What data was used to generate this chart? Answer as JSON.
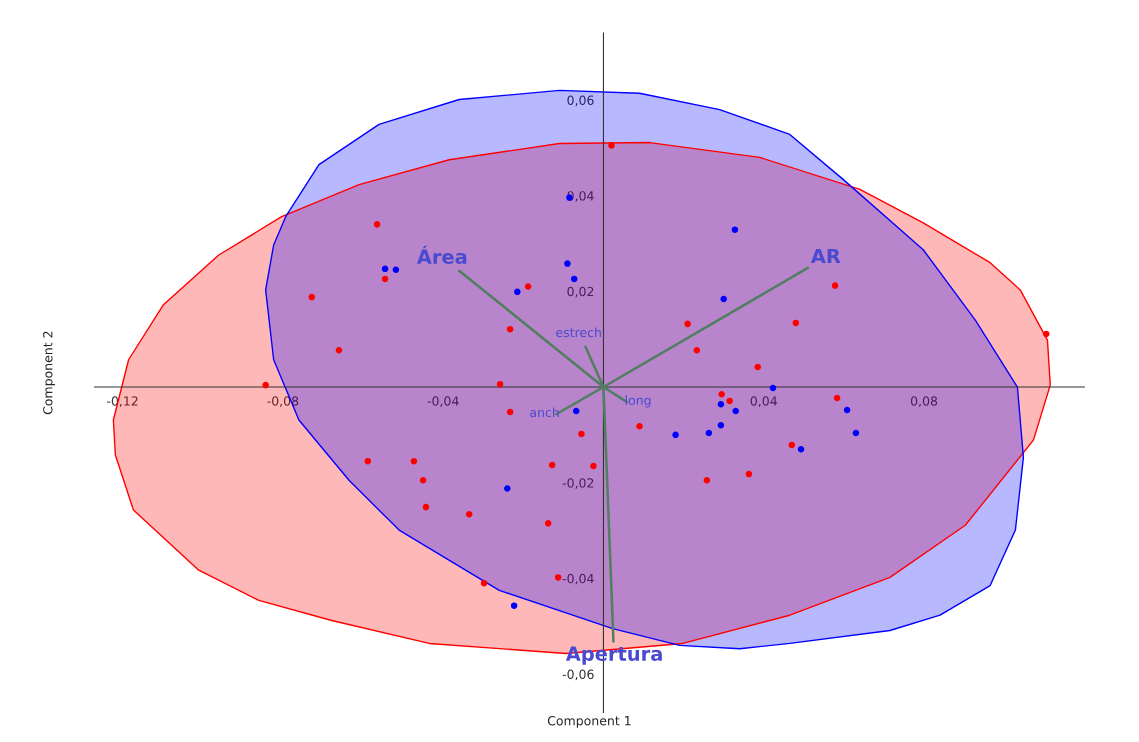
{
  "chart_data": {
    "type": "scatter",
    "xlabel": "Component 1",
    "ylabel": "Component 2",
    "xlim": [
      -0.127,
      0.12
    ],
    "ylim": [
      -0.068,
      0.074
    ],
    "xticks": [
      {
        "value": -0.12,
        "label": "-0,12"
      },
      {
        "value": -0.08,
        "label": "-0,08"
      },
      {
        "value": -0.04,
        "label": "-0,04"
      },
      {
        "value": 0.04,
        "label": "0,04"
      },
      {
        "value": 0.08,
        "label": "0,08"
      }
    ],
    "yticks": [
      {
        "value": 0.06,
        "label": "0,06"
      },
      {
        "value": 0.04,
        "label": "0,04"
      },
      {
        "value": 0.02,
        "label": "0,02"
      },
      {
        "value": -0.02,
        "label": "-0,02"
      },
      {
        "value": -0.04,
        "label": "-0,04"
      },
      {
        "value": -0.06,
        "label": "-0,06"
      }
    ],
    "grid": false,
    "legend": false,
    "series": [
      {
        "type": "area",
        "color": "#ff0000",
        "x": [
          -0.1223,
          -0.1218,
          -0.1173,
          -0.101,
          -0.086,
          -0.0678,
          -0.0435,
          -0.0093,
          0.0198,
          0.0465,
          0.0715,
          0.0903,
          0.1073,
          0.1115,
          0.1108,
          0.104,
          0.0965,
          0.0798,
          0.064,
          0.039,
          0.0115,
          -0.011,
          -0.0385,
          -0.061,
          -0.0803,
          -0.096,
          -0.1098,
          -0.1185
        ],
        "values": [
          -0.0069,
          -0.0142,
          -0.0257,
          -0.0383,
          -0.0446,
          -0.0488,
          -0.0536,
          -0.0557,
          -0.0536,
          -0.0477,
          -0.0398,
          -0.0289,
          -0.0111,
          0.0004,
          0.0098,
          0.0203,
          0.026,
          0.0343,
          0.0413,
          0.048,
          0.0511,
          0.0509,
          0.0475,
          0.0423,
          0.0356,
          0.0276,
          0.0172,
          0.0057
        ]
      },
      {
        "type": "area",
        "color": "#0000ff",
        "x": [
          -0.0843,
          -0.0823,
          -0.0793,
          -0.071,
          -0.056,
          -0.036,
          -0.011,
          0.009,
          0.029,
          0.0465,
          0.0598,
          0.0798,
          0.0928,
          0.1033,
          0.1048,
          0.1028,
          0.0965,
          0.084,
          0.0715,
          0.0465,
          0.034,
          0.019,
          0.0023,
          -0.026,
          -0.051,
          -0.0635,
          -0.076,
          -0.0823
        ],
        "values": [
          0.0203,
          0.0297,
          0.0356,
          0.0465,
          0.0549,
          0.0601,
          0.062,
          0.0614,
          0.058,
          0.0528,
          0.0434,
          0.0287,
          0.014,
          0.0,
          -0.0147,
          -0.0299,
          -0.0415,
          -0.0477,
          -0.0509,
          -0.0536,
          -0.0547,
          -0.054,
          -0.0505,
          -0.0425,
          -0.0299,
          -0.0195,
          -0.0069,
          0.0057
        ]
      },
      {
        "marker": "circle",
        "color": "#ff0000",
        "x": [
          0.002,
          -0.0565,
          -0.0545,
          -0.0728,
          -0.0188,
          -0.066,
          -0.0233,
          -0.0843,
          -0.0258,
          -0.0233,
          0.021,
          0.0233,
          0.0385,
          0.0578,
          0.048,
          0.1105,
          0.0295,
          0.0315,
          0.0583,
          0.009,
          -0.0055,
          0.047,
          0.0363,
          0.0258,
          -0.0588,
          -0.0473,
          -0.045,
          -0.0443,
          -0.0335,
          -0.0128,
          -0.0025,
          -0.0138,
          -0.0113,
          -0.0298
        ],
        "values": [
          0.0505,
          0.034,
          0.0226,
          0.0188,
          0.021,
          0.0077,
          0.0121,
          0.0004,
          0.0006,
          -0.0052,
          0.0132,
          0.0077,
          0.0042,
          0.0212,
          0.0134,
          0.0111,
          -0.0015,
          -0.0029,
          -0.0023,
          -0.0082,
          -0.0098,
          -0.0121,
          -0.0182,
          -0.0195,
          -0.0155,
          -0.0155,
          -0.0195,
          -0.0251,
          -0.0266,
          -0.0163,
          -0.0165,
          -0.0285,
          -0.0398,
          -0.041
        ]
      },
      {
        "marker": "circle",
        "color": "#0000ff",
        "x": [
          -0.0085,
          0.0328,
          -0.0545,
          -0.0518,
          -0.009,
          -0.0073,
          -0.0215,
          0.03,
          0.0423,
          0.0293,
          0.033,
          -0.0068,
          0.0293,
          0.0263,
          0.018,
          0.0608,
          0.063,
          0.0493,
          -0.024,
          -0.0223
        ],
        "values": [
          0.0396,
          0.0329,
          0.0247,
          0.0245,
          0.0258,
          0.0226,
          0.0199,
          0.0184,
          -0.0002,
          -0.0036,
          -0.005,
          -0.005,
          -0.008,
          -0.0096,
          -0.01,
          -0.0048,
          -0.0096,
          -0.013,
          -0.0212,
          -0.0457
        ]
      },
      {
        "type": "line",
        "color": "#4f7f5f",
        "x": [
          0,
          -0.036,
          null,
          0,
          0.051,
          null,
          0,
          0.0025,
          null,
          0,
          -0.0045,
          null,
          0,
          0.0058,
          null,
          0,
          -0.0118
        ],
        "values": [
          0,
          0.0243,
          null,
          0,
          0.0249,
          null,
          0,
          -0.0532,
          null,
          0,
          0.0084,
          null,
          0,
          -0.0031,
          null,
          0,
          -0.0057
        ]
      }
    ],
    "annotations": [
      {
        "text": "Área",
        "x": -0.036,
        "y": 0.0243
      },
      {
        "text": "AR",
        "x": 0.051,
        "y": 0.0249
      },
      {
        "text": "Apertura",
        "x": 0.0025,
        "y": -0.0532
      },
      {
        "text": "estrech",
        "x": -0.0045,
        "y": 0.0084
      },
      {
        "text": "long",
        "x": 0.0058,
        "y": -0.0031
      },
      {
        "text": "anch",
        "x": -0.0118,
        "y": -0.0057
      }
    ]
  }
}
